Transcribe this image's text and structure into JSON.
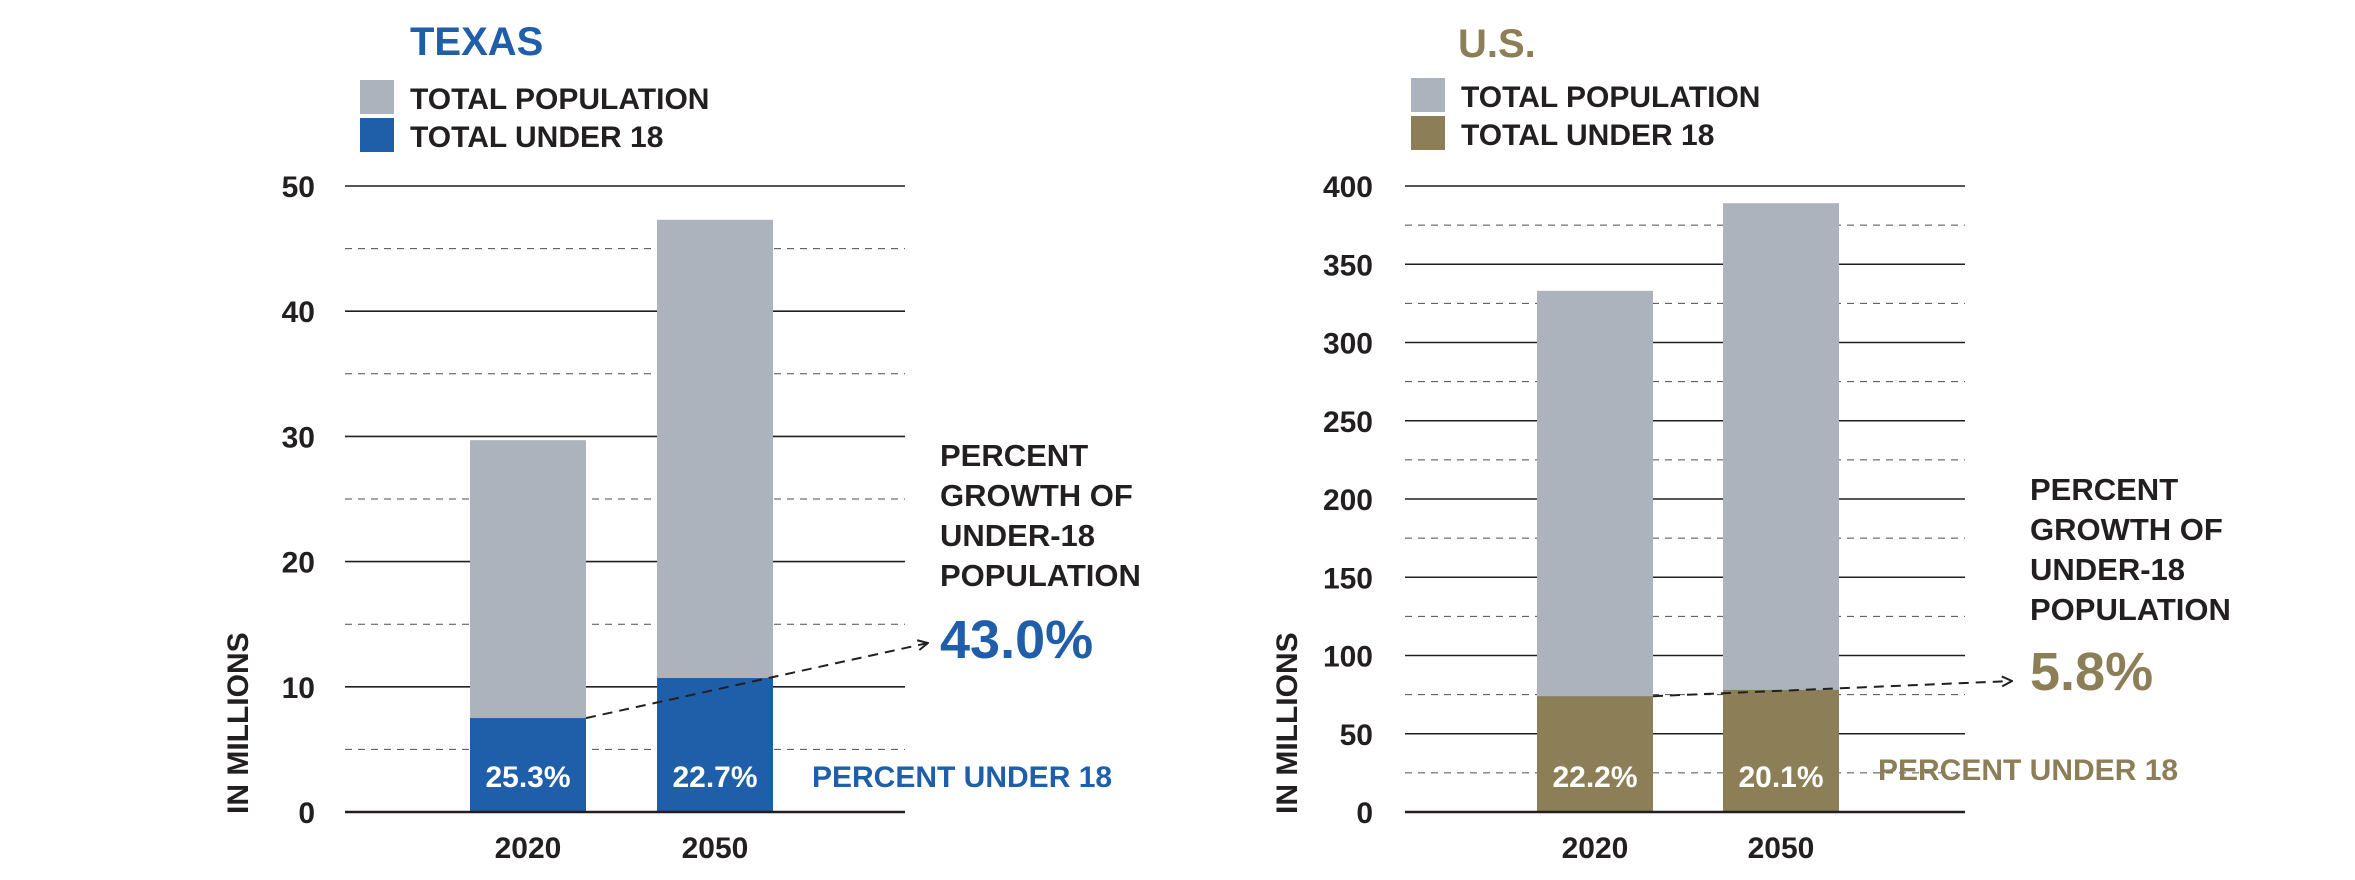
{
  "colors": {
    "texas": "#1f5ea8",
    "us": "#8c7f57",
    "total": "#adb3bd",
    "axis": "#231f20",
    "grid": "#231f20",
    "text": "#231f20",
    "background": "#ffffff"
  },
  "chart_data": [
    {
      "type": "bar",
      "title": "TEXAS",
      "legend": [
        "TOTAL POPULATION",
        "TOTAL UNDER 18"
      ],
      "ylabel": "IN MILLIONS",
      "ylim": [
        0,
        50
      ],
      "yticks": [
        0,
        10,
        20,
        30,
        40,
        50
      ],
      "minor_grid_step": 5,
      "categories": [
        "2020",
        "2050"
      ],
      "series": [
        {
          "name": "TOTAL POPULATION",
          "values": [
            29.7,
            47.3
          ]
        },
        {
          "name": "TOTAL UNDER 18",
          "values": [
            7.5,
            10.7
          ]
        }
      ],
      "bar_labels": [
        "25.3%",
        "22.7%"
      ],
      "percent_label": "PERCENT UNDER 18",
      "growth_title": [
        "PERCENT",
        "GROWTH OF",
        "UNDER-18",
        "POPULATION"
      ],
      "growth_value": "43.0%",
      "accent": "texas"
    },
    {
      "type": "bar",
      "title": "U.S.",
      "legend": [
        "TOTAL POPULATION",
        "TOTAL UNDER 18"
      ],
      "ylabel": "IN MILLIONS",
      "ylim": [
        0,
        400
      ],
      "yticks": [
        0,
        50,
        100,
        150,
        200,
        250,
        300,
        350,
        400
      ],
      "minor_grid_step": 25,
      "categories": [
        "2020",
        "2050"
      ],
      "series": [
        {
          "name": "TOTAL POPULATION",
          "values": [
            333,
            389
          ]
        },
        {
          "name": "TOTAL UNDER 18",
          "values": [
            74,
            78
          ]
        }
      ],
      "bar_labels": [
        "22.2%",
        "20.1%"
      ],
      "percent_label": "PERCENT UNDER 18",
      "growth_title": [
        "PERCENT",
        "GROWTH OF",
        "UNDER-18",
        "POPULATION"
      ],
      "growth_value": "5.8%",
      "accent": "us"
    }
  ]
}
